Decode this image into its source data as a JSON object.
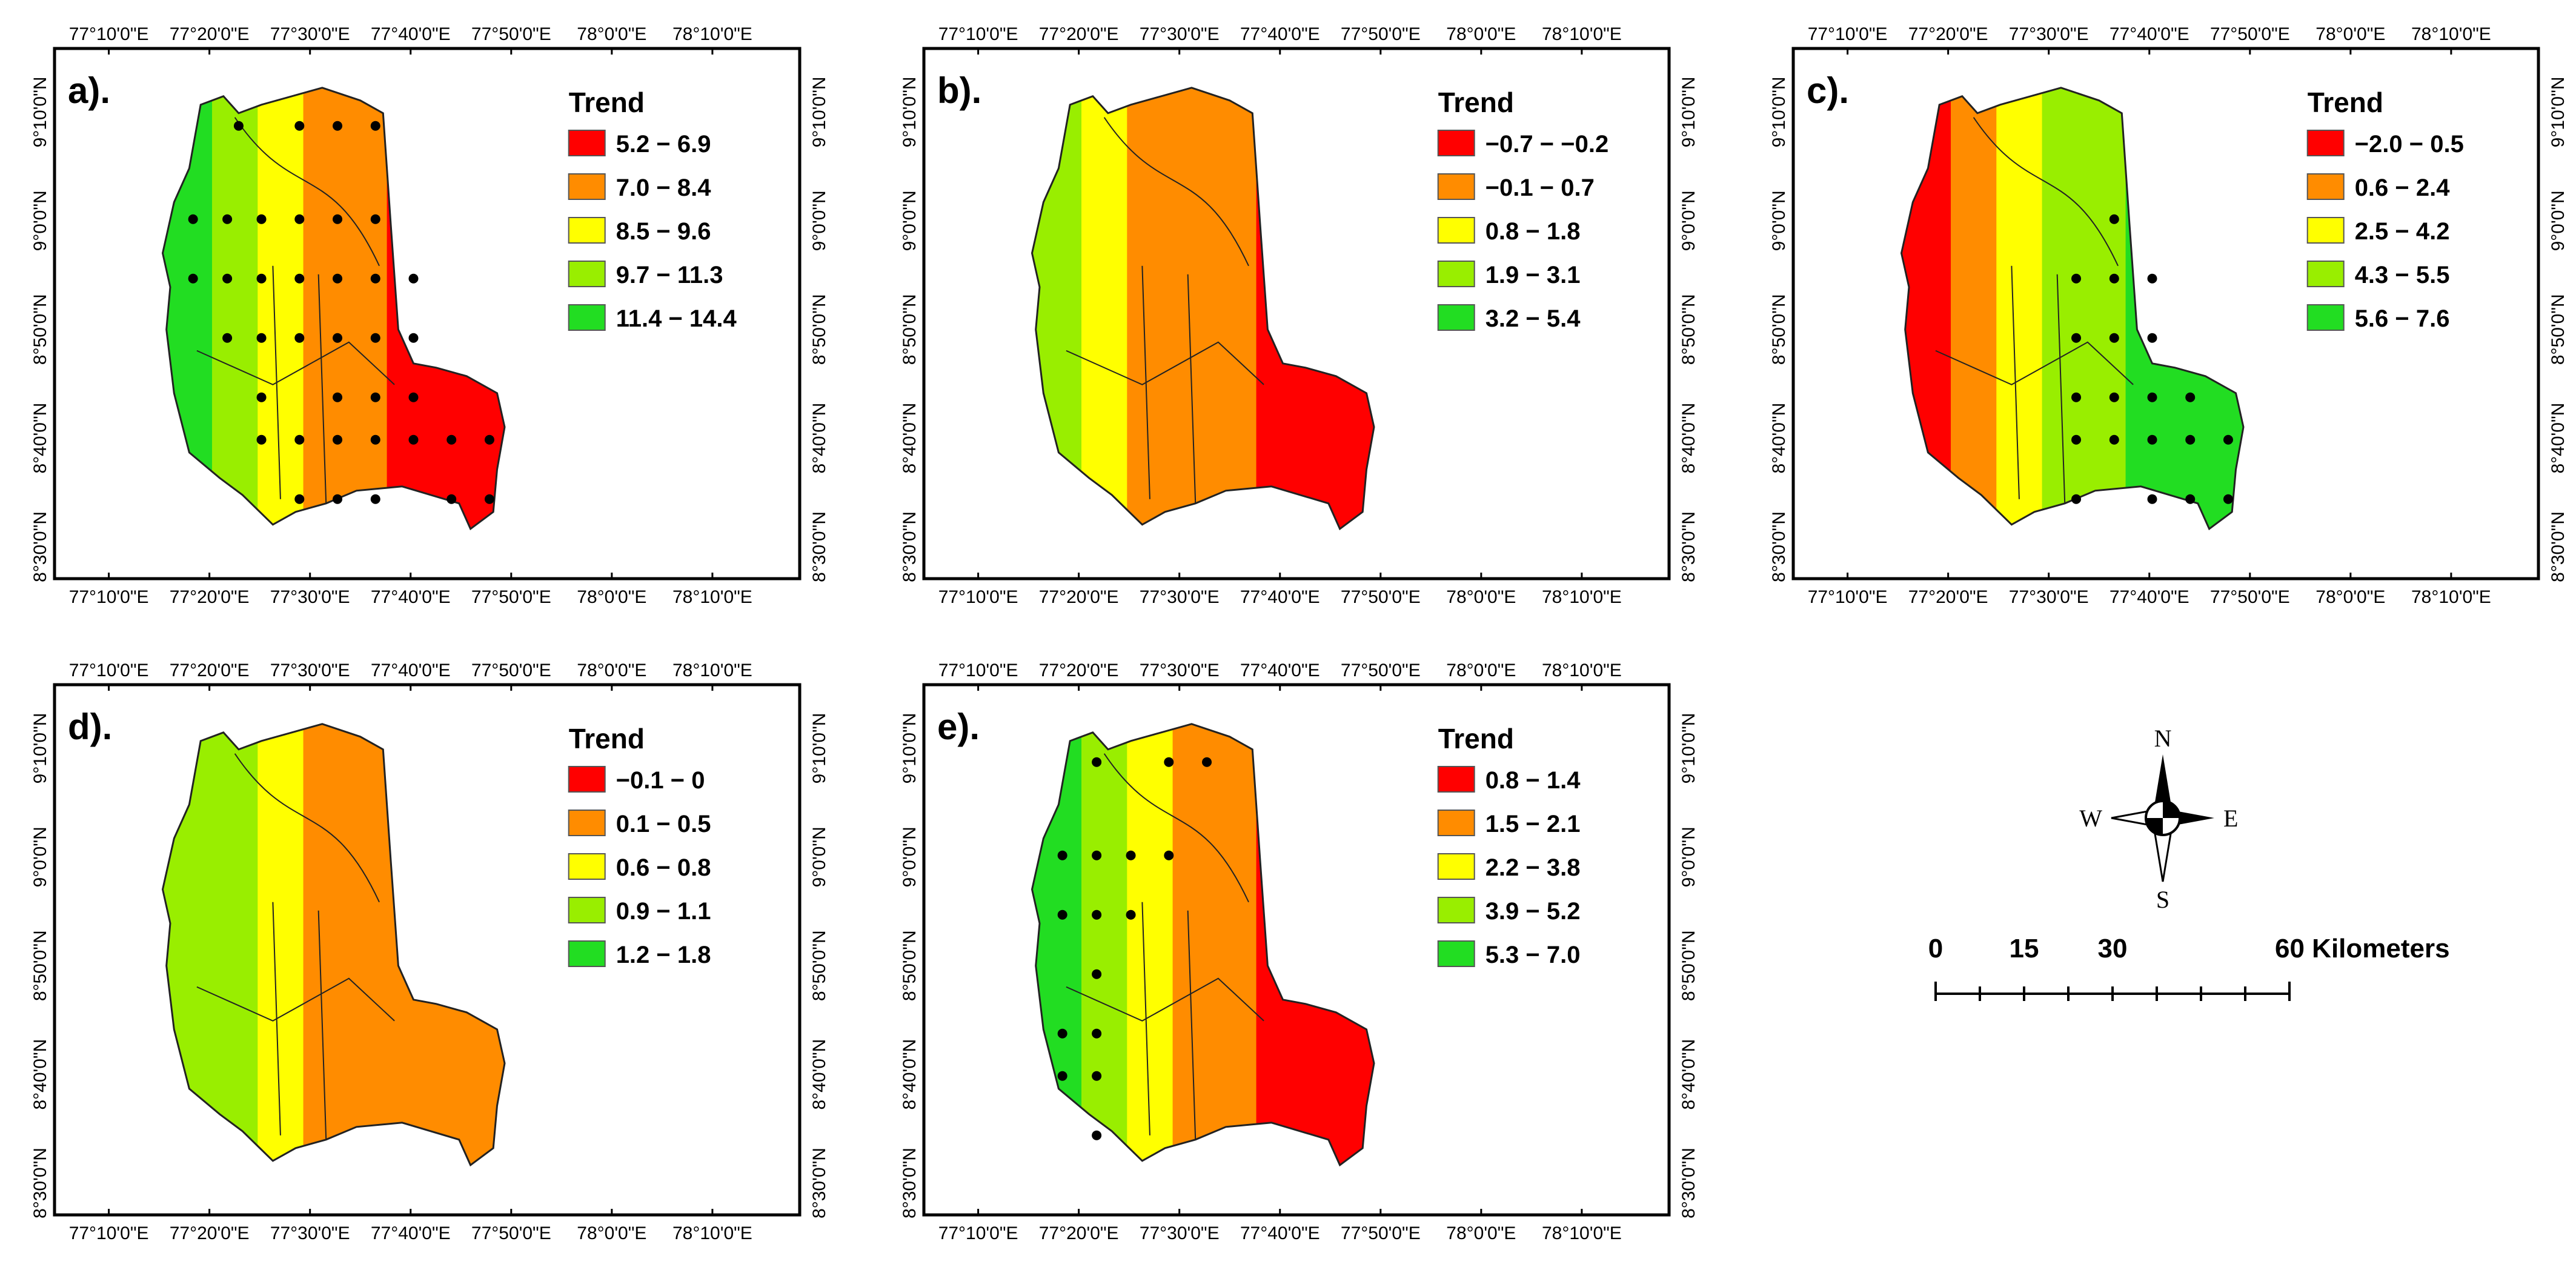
{
  "figure": {
    "longitude_ticks": [
      "77°10'0\"E",
      "77°20'0\"E",
      "77°30'0\"E",
      "77°40'0\"E",
      "77°50'0\"E",
      "78°0'0\"E",
      "78°10'0\"E"
    ],
    "latitude_ticks": [
      "9°10'0\"N",
      "9°0'0\"N",
      "8°50'0\"N",
      "8°40'0\"N",
      "8°30'0\"N"
    ]
  },
  "panels": [
    {
      "label": "a).",
      "legend": {
        "title": "Trend",
        "classes": [
          {
            "range": "5.2 − 6.9",
            "color": "#ff0000"
          },
          {
            "range": "7.0 − 8.4",
            "color": "#ff8c00"
          },
          {
            "range": "8.5 − 9.6",
            "color": "#ffff00"
          },
          {
            "range": "9.7 − 11.3",
            "color": "#99ee00"
          },
          {
            "range": "11.4 − 14.4",
            "color": "#22dd22"
          }
        ]
      },
      "zones": [
        "#22dd22",
        "#99ee00",
        "#ffff00",
        "#ff8c00",
        "#ff0000"
      ],
      "stations": [
        [
          0.21,
          0.07
        ],
        [
          0.37,
          0.07
        ],
        [
          0.47,
          0.07
        ],
        [
          0.57,
          0.07
        ],
        [
          0.09,
          0.29
        ],
        [
          0.18,
          0.29
        ],
        [
          0.27,
          0.29
        ],
        [
          0.37,
          0.29
        ],
        [
          0.47,
          0.29
        ],
        [
          0.57,
          0.29
        ],
        [
          0.09,
          0.43
        ],
        [
          0.18,
          0.43
        ],
        [
          0.27,
          0.43
        ],
        [
          0.37,
          0.43
        ],
        [
          0.47,
          0.43
        ],
        [
          0.57,
          0.43
        ],
        [
          0.67,
          0.43
        ],
        [
          0.18,
          0.57
        ],
        [
          0.27,
          0.57
        ],
        [
          0.37,
          0.57
        ],
        [
          0.47,
          0.57
        ],
        [
          0.57,
          0.57
        ],
        [
          0.67,
          0.57
        ],
        [
          0.27,
          0.71
        ],
        [
          0.47,
          0.71
        ],
        [
          0.57,
          0.71
        ],
        [
          0.67,
          0.71
        ],
        [
          0.27,
          0.81
        ],
        [
          0.37,
          0.81
        ],
        [
          0.47,
          0.81
        ],
        [
          0.57,
          0.81
        ],
        [
          0.67,
          0.81
        ],
        [
          0.77,
          0.81
        ],
        [
          0.87,
          0.81
        ],
        [
          0.37,
          0.95
        ],
        [
          0.47,
          0.95
        ],
        [
          0.57,
          0.95
        ],
        [
          0.77,
          0.95
        ],
        [
          0.87,
          0.95
        ]
      ]
    },
    {
      "label": "b).",
      "legend": {
        "title": "Trend",
        "classes": [
          {
            "range": "−0.7 − −0.2",
            "color": "#ff0000"
          },
          {
            "range": "−0.1 − 0.7",
            "color": "#ff8c00"
          },
          {
            "range": "0.8 − 1.8",
            "color": "#ffff00"
          },
          {
            "range": "1.9 − 3.1",
            "color": "#99ee00"
          },
          {
            "range": "3.2 − 5.4",
            "color": "#22dd22"
          }
        ]
      },
      "zones": [
        "#99ee00",
        "#ffff00",
        "#ff8c00",
        "#ff8c00",
        "#ff0000"
      ],
      "stations": []
    },
    {
      "label": "c).",
      "legend": {
        "title": "Trend",
        "classes": [
          {
            "range": "−2.0 − 0.5",
            "color": "#ff0000"
          },
          {
            "range": "0.6 − 2.4",
            "color": "#ff8c00"
          },
          {
            "range": "2.5 − 4.2",
            "color": "#ffff00"
          },
          {
            "range": "4.3 − 5.5",
            "color": "#99ee00"
          },
          {
            "range": "5.6 − 7.6",
            "color": "#22dd22"
          }
        ]
      },
      "zones": [
        "#ff0000",
        "#ff8c00",
        "#ffff00",
        "#99ee00",
        "#22dd22"
      ],
      "stations": [
        [
          0.57,
          0.29
        ],
        [
          0.47,
          0.43
        ],
        [
          0.57,
          0.43
        ],
        [
          0.67,
          0.43
        ],
        [
          0.47,
          0.57
        ],
        [
          0.57,
          0.57
        ],
        [
          0.67,
          0.57
        ],
        [
          0.47,
          0.71
        ],
        [
          0.57,
          0.71
        ],
        [
          0.67,
          0.71
        ],
        [
          0.77,
          0.71
        ],
        [
          0.47,
          0.81
        ],
        [
          0.57,
          0.81
        ],
        [
          0.67,
          0.81
        ],
        [
          0.77,
          0.81
        ],
        [
          0.87,
          0.81
        ],
        [
          0.47,
          0.95
        ],
        [
          0.67,
          0.95
        ],
        [
          0.77,
          0.95
        ],
        [
          0.87,
          0.95
        ]
      ]
    },
    {
      "label": "d).",
      "legend": {
        "title": "Trend",
        "classes": [
          {
            "range": "−0.1 − 0",
            "color": "#ff0000"
          },
          {
            "range": "0.1 − 0.5",
            "color": "#ff8c00"
          },
          {
            "range": "0.6 − 0.8",
            "color": "#ffff00"
          },
          {
            "range": "0.9 − 1.1",
            "color": "#99ee00"
          },
          {
            "range": "1.2 − 1.8",
            "color": "#22dd22"
          }
        ]
      },
      "zones": [
        "#99ee00",
        "#99ee00",
        "#ffff00",
        "#ff8c00",
        "#ff8c00"
      ],
      "stations": []
    },
    {
      "label": "e).",
      "legend": {
        "title": "Trend",
        "classes": [
          {
            "range": "0.8 − 1.4",
            "color": "#ff0000"
          },
          {
            "range": "1.5 − 2.1",
            "color": "#ff8c00"
          },
          {
            "range": "2.2 − 3.8",
            "color": "#ffff00"
          },
          {
            "range": "3.9 − 5.2",
            "color": "#99ee00"
          },
          {
            "range": "5.3 − 7.0",
            "color": "#22dd22"
          }
        ]
      },
      "zones": [
        "#22dd22",
        "#99ee00",
        "#ffff00",
        "#ff8c00",
        "#ff0000"
      ],
      "stations": [
        [
          0.18,
          0.07
        ],
        [
          0.37,
          0.07
        ],
        [
          0.47,
          0.07
        ],
        [
          0.09,
          0.29
        ],
        [
          0.18,
          0.29
        ],
        [
          0.27,
          0.29
        ],
        [
          0.37,
          0.29
        ],
        [
          0.09,
          0.43
        ],
        [
          0.18,
          0.43
        ],
        [
          0.27,
          0.43
        ],
        [
          0.18,
          0.57
        ],
        [
          0.09,
          0.71
        ],
        [
          0.18,
          0.71
        ],
        [
          0.09,
          0.81
        ],
        [
          0.18,
          0.81
        ],
        [
          0.18,
          0.95
        ]
      ]
    }
  ],
  "compass": {
    "north": "N",
    "south": "S",
    "east": "E",
    "west": "W"
  },
  "scale_bar": {
    "labels": [
      "0",
      "15",
      "30",
      "60 Kilometers"
    ]
  }
}
